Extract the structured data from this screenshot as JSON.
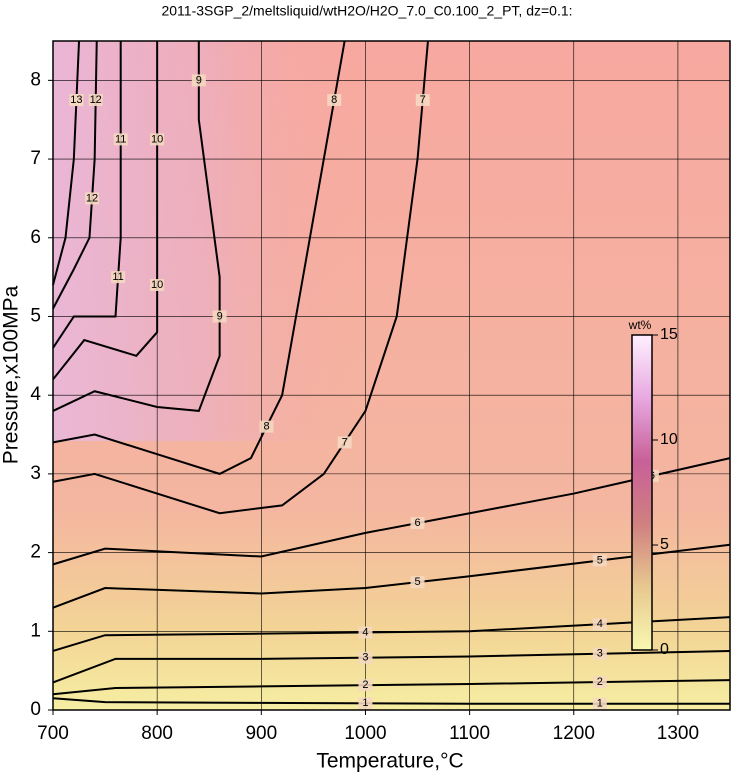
{
  "chart_data": {
    "type": "contour",
    "title": "2011-3SGP_2/meltsliquid/wtH2O/H2O_7.0_C0.100_2_PT, dz=0.1:",
    "x_label": "Temperature,°C",
    "y_label": "Pressure,x100MPa",
    "xlim": [
      700,
      1350
    ],
    "ylim": [
      0,
      8.5
    ],
    "xticks": [
      700,
      800,
      900,
      1000,
      1100,
      1200,
      1300
    ],
    "yticks": [
      0,
      1,
      2,
      3,
      4,
      5,
      6,
      7,
      8
    ],
    "grid": true,
    "line_color": "#000000",
    "colorbar": {
      "label": "wt%",
      "lim": [
        0,
        15
      ],
      "ticks": [
        0,
        5,
        10,
        15
      ],
      "colors": [
        "#f8f8b0",
        "#e8c890",
        "#d08080",
        "#c86098",
        "#e8a8e0",
        "#fff0ff"
      ]
    },
    "contours": [
      {
        "level": 1,
        "x": [
          700,
          750,
          900,
          1100,
          1350
        ],
        "y": [
          0.15,
          0.1,
          0.09,
          0.08,
          0.08
        ]
      },
      {
        "level": 2,
        "x": [
          700,
          760,
          900,
          1100,
          1350
        ],
        "y": [
          0.2,
          0.28,
          0.3,
          0.33,
          0.38
        ]
      },
      {
        "level": 3,
        "x": [
          700,
          760,
          900,
          1100,
          1350
        ],
        "y": [
          0.35,
          0.65,
          0.65,
          0.68,
          0.75
        ]
      },
      {
        "level": 4,
        "x": [
          700,
          750,
          900,
          1100,
          1350
        ],
        "y": [
          0.75,
          0.95,
          0.97,
          1.0,
          1.18
        ]
      },
      {
        "level": 5,
        "x": [
          700,
          750,
          900,
          1000,
          1100,
          1350
        ],
        "y": [
          1.3,
          1.55,
          1.48,
          1.55,
          1.7,
          2.1
        ]
      },
      {
        "level": 6,
        "x": [
          700,
          750,
          900,
          1000,
          1100,
          1200,
          1350
        ],
        "y": [
          1.85,
          2.05,
          1.95,
          2.25,
          2.5,
          2.75,
          3.2
        ]
      },
      {
        "level": 7,
        "x": [
          700,
          740,
          800,
          860,
          920,
          960,
          1000,
          1030,
          1050,
          1060
        ],
        "y": [
          2.9,
          3.0,
          2.75,
          2.5,
          2.6,
          3.0,
          3.8,
          5.0,
          7.0,
          8.5
        ]
      },
      {
        "level": 8,
        "x": [
          700,
          740,
          800,
          860,
          890,
          920,
          940,
          960,
          980
        ],
        "y": [
          3.4,
          3.5,
          3.25,
          3.0,
          3.2,
          4.0,
          5.5,
          7.0,
          8.5
        ]
      },
      {
        "level": 9,
        "x": [
          700,
          740,
          800,
          840,
          860,
          860,
          850,
          840,
          840
        ],
        "y": [
          3.8,
          4.05,
          3.85,
          3.8,
          4.5,
          5.5,
          6.5,
          7.5,
          8.5
        ]
      },
      {
        "level": 10,
        "x": [
          700,
          730,
          780,
          800,
          800,
          800
        ],
        "y": [
          4.2,
          4.7,
          4.5,
          4.8,
          6,
          8.5
        ]
      },
      {
        "level": 11,
        "x": [
          700,
          720,
          760,
          765,
          765
        ],
        "y": [
          4.6,
          5.0,
          5.0,
          6,
          8.5
        ]
      },
      {
        "level": 12,
        "x": [
          700,
          720,
          735,
          740,
          742
        ],
        "y": [
          5.1,
          5.6,
          6,
          7,
          8.5
        ]
      },
      {
        "level": 13,
        "x": [
          700,
          712,
          720,
          725
        ],
        "y": [
          5.4,
          6,
          7,
          8.5
        ]
      }
    ]
  }
}
